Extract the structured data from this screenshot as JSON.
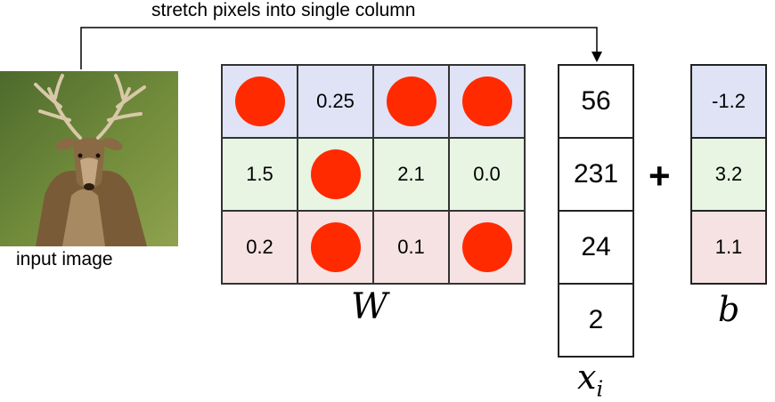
{
  "caption": "stretch pixels into single column",
  "input_label": "input image",
  "weights": {
    "label": "W",
    "rows": [
      [
        "●",
        "0.25",
        "●",
        "●"
      ],
      [
        "1.5",
        "●",
        "2.1",
        "0.0"
      ],
      [
        "0.2",
        "●",
        "0.1",
        "●"
      ]
    ],
    "row_colors": [
      "#dfe3f5",
      "#e7f5e2",
      "#f6e2e2"
    ],
    "dot_color": "#ff2a00"
  },
  "x_vector": {
    "label_main": "x",
    "label_sub": "i",
    "values": [
      "56",
      "231",
      "24",
      "2"
    ]
  },
  "operator": "+",
  "bias": {
    "label": "b",
    "values": [
      "-1.2",
      "3.2",
      "1.1"
    ]
  }
}
